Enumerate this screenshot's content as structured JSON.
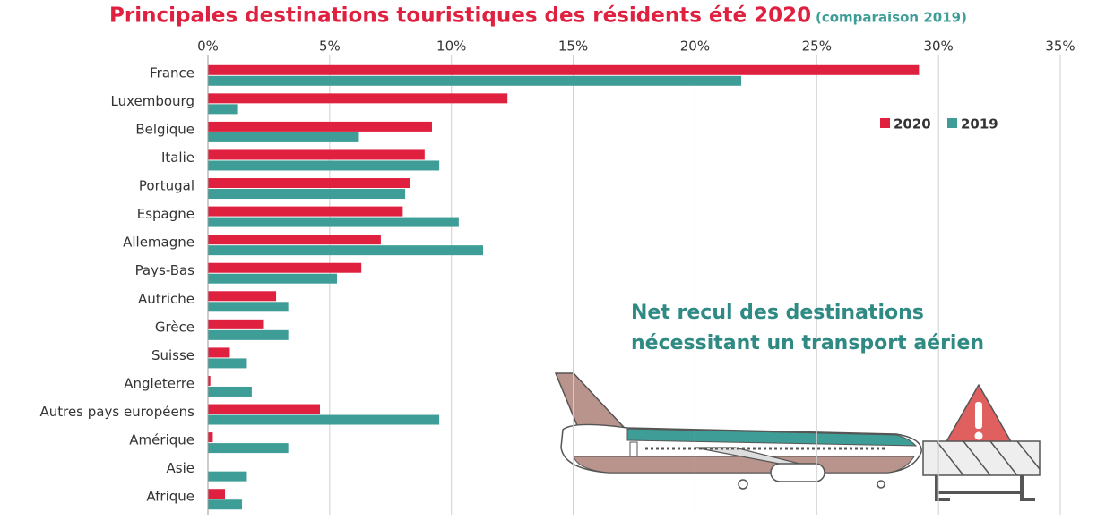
{
  "chart_data": {
    "type": "hbar",
    "title": "Principales destinations touristiques des résidents été 2020",
    "subtitle": "(comparaison 2019)",
    "annotation": [
      "Net recul des destinations",
      "nécessitant un transport aérien"
    ],
    "categories": [
      "France",
      "Luxembourg",
      "Belgique",
      "Italie",
      "Portugal",
      "Espagne",
      "Allemagne",
      "Pays-Bas",
      "Autriche",
      "Grèce",
      "Suisse",
      "Angleterre",
      "Autres pays européens",
      "Amérique",
      "Asie",
      "Afrique"
    ],
    "series": [
      {
        "name": "2020",
        "color": "#e0203f",
        "values": [
          29.2,
          12.3,
          9.2,
          8.9,
          8.3,
          8.0,
          7.1,
          6.3,
          2.8,
          2.3,
          0.9,
          0.1,
          4.6,
          0.2,
          0,
          0.7
        ]
      },
      {
        "name": "2019",
        "color": "#3e9e97",
        "values": [
          21.9,
          1.2,
          6.2,
          9.5,
          8.1,
          10.3,
          11.3,
          5.3,
          3.3,
          3.3,
          1.6,
          1.8,
          9.5,
          3.3,
          1.6,
          1.4
        ]
      }
    ],
    "xlim": [
      0,
      35
    ],
    "xticks": [
      {
        "value": 0,
        "label": "0%"
      },
      {
        "value": 5,
        "label": "5%"
      },
      {
        "value": 10,
        "label": "10%"
      },
      {
        "value": 15,
        "label": "15%"
      },
      {
        "value": 20,
        "label": "20%"
      },
      {
        "value": 25,
        "label": "25%"
      },
      {
        "value": 30,
        "label": "30%"
      },
      {
        "value": 35,
        "label": "35%"
      }
    ],
    "grid": true
  }
}
